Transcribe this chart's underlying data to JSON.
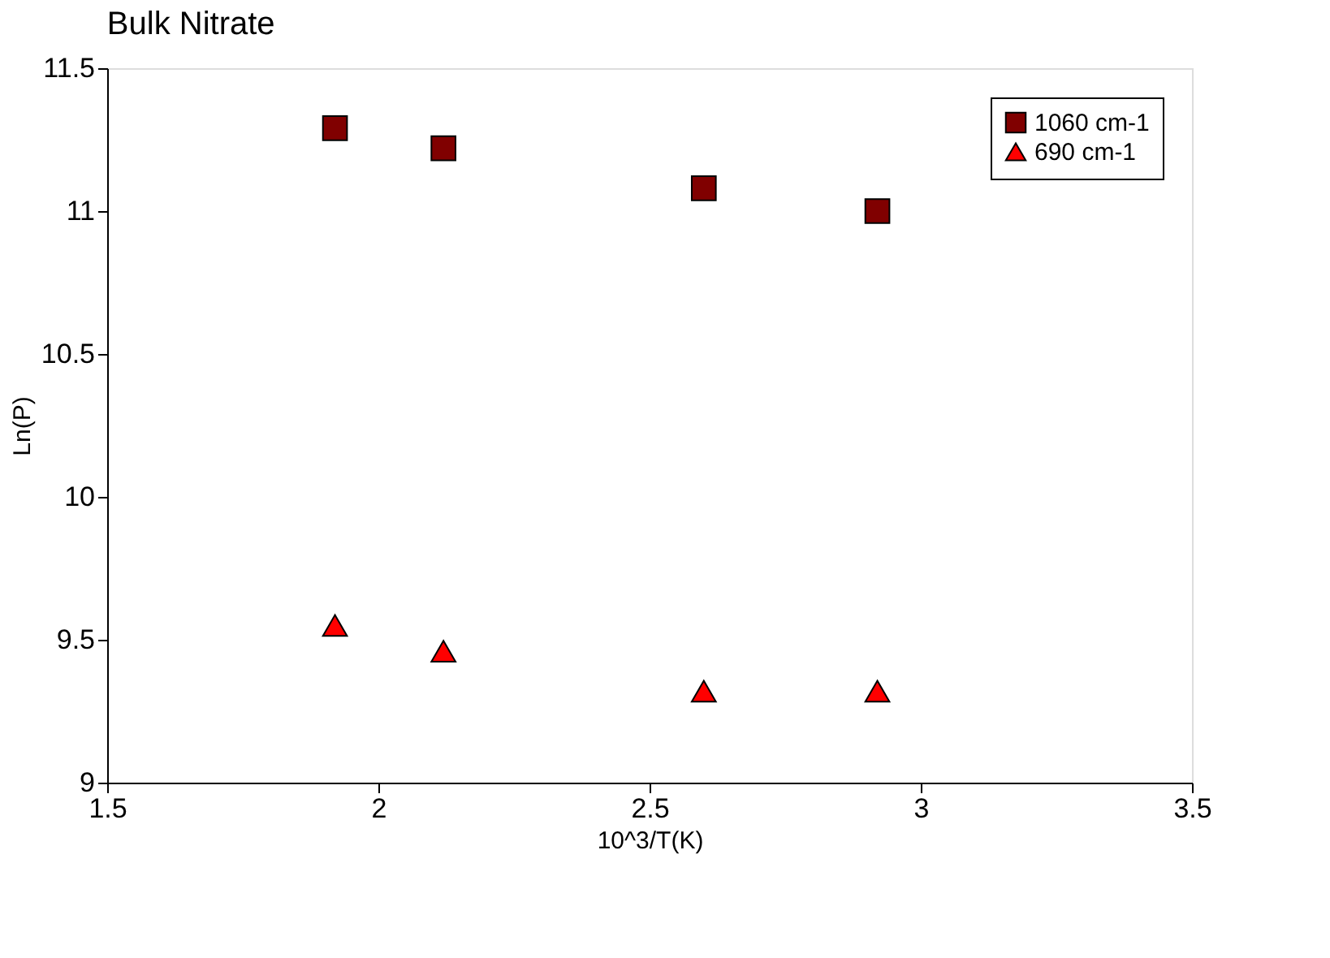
{
  "chart_data": {
    "type": "scatter",
    "title": "Bulk Nitrate",
    "xlabel": "10^3/T(K)",
    "ylabel": "Ln(P)",
    "x": [
      1.92,
      2.12,
      2.6,
      2.92
    ],
    "series": [
      {
        "name": "1060 cm-1",
        "color": "#800000",
        "marker": "square",
        "values": [
          11.29,
          11.22,
          11.08,
          11.0
        ]
      },
      {
        "name": "690 cm-1",
        "color": "#ff0000",
        "marker": "triangle",
        "values": [
          9.55,
          9.46,
          9.32,
          9.32
        ]
      }
    ],
    "xlim": [
      1.5,
      3.5
    ],
    "xticks": [
      1.5,
      2,
      2.5,
      3,
      3.5
    ],
    "ylim": [
      9,
      11.5
    ],
    "yticks": [
      9,
      9.5,
      10,
      10.5,
      11,
      11.5
    ],
    "grid": false,
    "legend": "top right"
  }
}
